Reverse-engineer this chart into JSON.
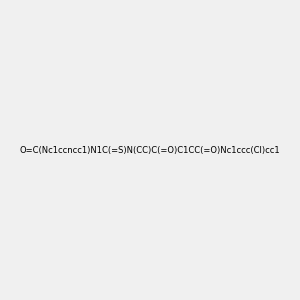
{
  "smiles": "O=C(Nc1ccncc1)N1C(=S)N(CC)C(=O)C1CC(=O)Nc1ccc(Cl)cc1",
  "title": "",
  "img_size": [
    300,
    300
  ],
  "background": "#f0f0f0"
}
